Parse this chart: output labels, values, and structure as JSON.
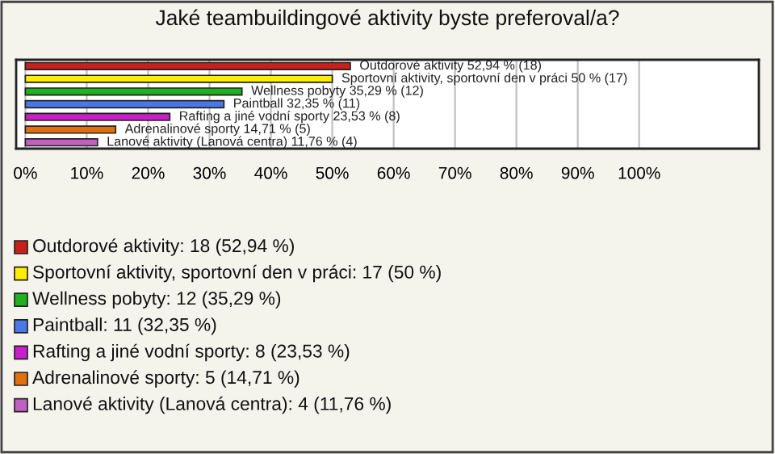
{
  "chart_data": {
    "type": "bar",
    "orientation": "horizontal",
    "title": "Jaké teambuildingové aktivity byste preferoval/a?",
    "categories": [
      null,
      null,
      null,
      null,
      null,
      null,
      null
    ],
    "values": [
      52.94,
      50,
      35.29,
      32.35,
      23.53,
      14.71,
      11.76
    ],
    "colors": [
      "#c8201c",
      "#ffee00",
      "#20b020",
      "#4a78e8",
      "#c820c8",
      "#e07010",
      "#c060c0"
    ],
    "value_labels": [
      "Outdorové aktivity 52,94 % (18)",
      "Sportovní aktivity, sportovní den v práci 50 % (17)",
      "Wellness pobyty 35,29 % (12)",
      "Paintball 32,35 % (11)",
      "Rafting a jiné vodní sporty 23,53 % (8)",
      "Adrenalinové sporty 14,71 % (5)",
      "Lanové aktivity (Lanová centra) 11,76 % (4)"
    ],
    "annotations": [
      "Outdorové aktivity: 18 (52,94 %)",
      "Sportovní aktivity, sportovní den v práci: 17 (50 %)",
      "Wellness pobyty: 12 (35,29 %)",
      "Paintball: 11 (32,35 %)",
      "Rafting a jiné vodní sporty: 8 (23,53 %)",
      "Adrenalinové sporty: 5 (14,71 %)",
      "Lanové aktivity (Lanová centra): 4 (11,76 %)"
    ],
    "xlim": [
      -1.5,
      119.5
    ],
    "xticks": [
      {
        "value": 0,
        "label": "0%"
      },
      {
        "value": 10,
        "label": "10%"
      },
      {
        "value": 20,
        "label": "20%"
      },
      {
        "value": 30,
        "label": "30%"
      },
      {
        "value": 40,
        "label": "40%"
      },
      {
        "value": 50,
        "label": "50%"
      },
      {
        "value": 60,
        "label": "60%"
      },
      {
        "value": 70,
        "label": "70%"
      },
      {
        "value": 80,
        "label": "80%"
      },
      {
        "value": 90,
        "label": "90%"
      },
      {
        "value": 100,
        "label": "100%"
      }
    ],
    "grid": "x"
  }
}
